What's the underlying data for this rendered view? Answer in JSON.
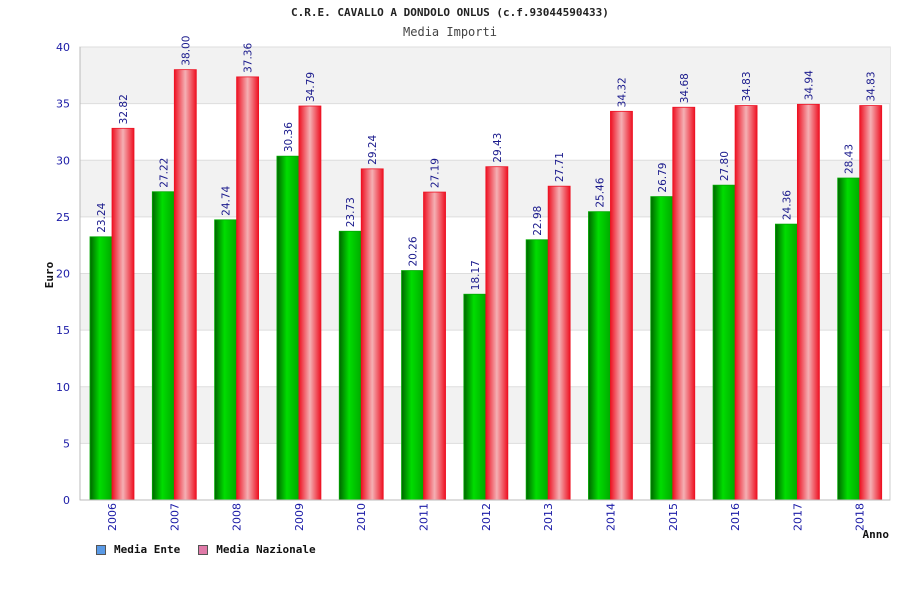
{
  "chart_data": {
    "type": "bar",
    "title": "C.R.E. CAVALLO A DONDOLO ONLUS (c.f.93044590433)",
    "subtitle": "Media Importi",
    "xlabel": "Anno",
    "ylabel": "Euro",
    "ylim": [
      0,
      40
    ],
    "yticks": [
      0,
      5,
      10,
      15,
      20,
      25,
      30,
      35,
      40
    ],
    "grid": true,
    "legend_position": "bottom-left",
    "categories": [
      "2006",
      "2007",
      "2008",
      "2009",
      "2010",
      "2011",
      "2012",
      "2013",
      "2014",
      "2015",
      "2016",
      "2017",
      "2018"
    ],
    "series": [
      {
        "name": "Media Ente",
        "color": "#00aa00",
        "legend_color": "#5a9ae6",
        "values": [
          23.24,
          27.22,
          24.74,
          30.36,
          23.73,
          20.26,
          18.17,
          22.98,
          25.46,
          26.79,
          27.8,
          24.36,
          28.43
        ],
        "labels": [
          "23.24",
          "27.22",
          "24.74",
          "30.36",
          "23.73",
          "20.26",
          "18.17",
          "22.98",
          "25.46",
          "26.79",
          "27.80",
          "24.36",
          "28.43"
        ]
      },
      {
        "name": "Media Nazionale",
        "color": "#ee1122",
        "legend_color": "#e07aa8",
        "values": [
          32.82,
          38.0,
          37.36,
          34.79,
          29.24,
          27.19,
          29.43,
          27.71,
          34.32,
          34.68,
          34.83,
          34.94,
          34.83
        ],
        "labels": [
          "32.82",
          "38.00",
          "37.36",
          "34.79",
          "29.24",
          "27.19",
          "29.43",
          "27.71",
          "34.32",
          "34.68",
          "34.83",
          "34.94",
          "34.83"
        ]
      }
    ]
  }
}
